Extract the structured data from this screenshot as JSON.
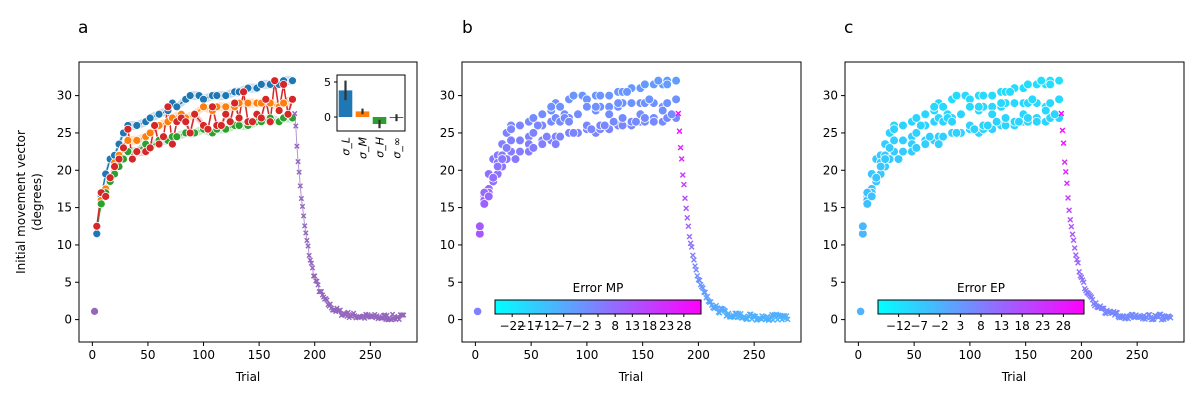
{
  "figure": {
    "colors": {
      "blue": "#1f77b4",
      "orange": "#ff7f0e",
      "green": "#2ca02c",
      "red": "#d62728",
      "purple": "#9467bd",
      "cool_start": "#00ffff",
      "cool_end": "#ff00ff"
    }
  },
  "chart_data": [
    {
      "panel_label": "a",
      "type": "line",
      "xlabel": "Trial",
      "ylabel_lines": [
        "Initial movement vector",
        "(degrees)"
      ],
      "xlim": [
        -12,
        292
      ],
      "ylim": [
        -3,
        34.5
      ],
      "xticks": [
        0,
        50,
        100,
        150,
        200,
        250
      ],
      "yticks": [
        0,
        5,
        10,
        15,
        20,
        25,
        30
      ],
      "baseline": {
        "x": 2,
        "y": 1.1,
        "color": "purple"
      },
      "series": [
        {
          "color": "blue",
          "marker": "o",
          "points": [
            [
              4,
              11.5
            ],
            [
              8,
              16.5
            ],
            [
              12,
              19.5
            ],
            [
              16,
              21.5
            ],
            [
              20,
              22
            ],
            [
              24,
              23.5
            ],
            [
              28,
              25
            ],
            [
              32,
              26
            ],
            [
              40,
              26
            ],
            [
              48,
              26.5
            ],
            [
              52,
              27
            ],
            [
              60,
              27.5
            ],
            [
              68,
              28
            ],
            [
              72,
              29
            ],
            [
              76,
              28.5
            ],
            [
              84,
              29.5
            ],
            [
              88,
              30
            ],
            [
              96,
              30
            ],
            [
              100,
              29.5
            ],
            [
              108,
              30
            ],
            [
              112,
              30
            ],
            [
              120,
              30
            ],
            [
              128,
              30.5
            ],
            [
              132,
              30.5
            ],
            [
              140,
              31
            ],
            [
              148,
              31
            ],
            [
              152,
              31.5
            ],
            [
              160,
              31.5
            ],
            [
              168,
              31.5
            ],
            [
              172,
              32
            ],
            [
              180,
              32
            ]
          ]
        },
        {
          "color": "orange",
          "marker": "o",
          "points": [
            [
              4,
              12.5
            ],
            [
              8,
              16
            ],
            [
              12,
              17.5
            ],
            [
              16,
              19
            ],
            [
              20,
              21
            ],
            [
              24,
              22
            ],
            [
              28,
              23
            ],
            [
              32,
              24
            ],
            [
              40,
              24
            ],
            [
              48,
              24.5
            ],
            [
              52,
              25
            ],
            [
              60,
              26
            ],
            [
              68,
              26.5
            ],
            [
              72,
              27
            ],
            [
              80,
              27.5
            ],
            [
              84,
              27
            ],
            [
              92,
              27.5
            ],
            [
              100,
              28.5
            ],
            [
              108,
              28
            ],
            [
              112,
              28.5
            ],
            [
              120,
              28.5
            ],
            [
              128,
              28.5
            ],
            [
              132,
              29
            ],
            [
              140,
              29
            ],
            [
              148,
              29
            ],
            [
              152,
              29
            ],
            [
              160,
              29
            ],
            [
              168,
              28.5
            ],
            [
              172,
              29
            ],
            [
              180,
              29.5
            ]
          ]
        },
        {
          "color": "green",
          "marker": "o",
          "points": [
            [
              4,
              12.5
            ],
            [
              8,
              15.5
            ],
            [
              12,
              17
            ],
            [
              16,
              18.5
            ],
            [
              20,
              19.5
            ],
            [
              24,
              20.5
            ],
            [
              28,
              21.5
            ],
            [
              32,
              22.5
            ],
            [
              40,
              22.5
            ],
            [
              48,
              23.5
            ],
            [
              52,
              23
            ],
            [
              60,
              24
            ],
            [
              68,
              24
            ],
            [
              72,
              24.5
            ],
            [
              76,
              24.5
            ],
            [
              84,
              25
            ],
            [
              92,
              25
            ],
            [
              100,
              25.5
            ],
            [
              108,
              25
            ],
            [
              112,
              25.5
            ],
            [
              120,
              25.5
            ],
            [
              128,
              26
            ],
            [
              132,
              26
            ],
            [
              140,
              26
            ],
            [
              148,
              26.5
            ],
            [
              152,
              26.5
            ],
            [
              160,
              27
            ],
            [
              168,
              26.5
            ],
            [
              172,
              27
            ],
            [
              180,
              27
            ]
          ]
        },
        {
          "color": "red",
          "marker": "o",
          "points": [
            [
              4,
              12.5
            ],
            [
              8,
              17
            ],
            [
              12,
              16.5
            ],
            [
              16,
              19
            ],
            [
              20,
              20.5
            ],
            [
              24,
              21.5
            ],
            [
              28,
              23
            ],
            [
              32,
              25.5
            ],
            [
              36,
              21.5
            ],
            [
              40,
              22.5
            ],
            [
              48,
              22.5
            ],
            [
              52,
              23
            ],
            [
              56,
              26
            ],
            [
              60,
              23.5
            ],
            [
              64,
              24.5
            ],
            [
              68,
              28.5
            ],
            [
              72,
              23.5
            ],
            [
              76,
              26.5
            ],
            [
              80,
              27
            ],
            [
              84,
              26.5
            ],
            [
              88,
              25
            ],
            [
              92,
              27.5
            ],
            [
              100,
              26
            ],
            [
              104,
              25.5
            ],
            [
              108,
              28.5
            ],
            [
              112,
              26
            ],
            [
              116,
              26
            ],
            [
              120,
              27.5
            ],
            [
              124,
              26.5
            ],
            [
              128,
              29
            ],
            [
              132,
              27
            ],
            [
              136,
              30.5
            ],
            [
              140,
              26.5
            ],
            [
              144,
              26.5
            ],
            [
              148,
              27.5
            ],
            [
              152,
              27
            ],
            [
              156,
              29.5
            ],
            [
              160,
              26.5
            ],
            [
              164,
              32
            ],
            [
              168,
              28
            ],
            [
              172,
              31.5
            ],
            [
              176,
              27.5
            ],
            [
              180,
              29.5
            ]
          ]
        }
      ],
      "washout": {
        "color": "purple",
        "marker": "x",
        "x_start": 182,
        "x_end": 280,
        "y_start": 28,
        "y_end": 0.3,
        "decay_trials": 11
      },
      "inset": {
        "type": "bar",
        "categories": [
          "σ_L",
          "σ_M",
          "σ_H",
          "σ_∞"
        ],
        "values": [
          3.8,
          0.8,
          -1.0,
          -0.1
        ],
        "errors": [
          1.4,
          0.4,
          0.6,
          0.5
        ],
        "colors": [
          "blue",
          "orange",
          "green",
          "red"
        ],
        "ylim": [
          -2,
          6
        ],
        "yticks": [
          0,
          5
        ]
      }
    },
    {
      "panel_label": "b",
      "type": "scatter",
      "xlabel": "Trial",
      "xlim": [
        -12,
        292
      ],
      "ylim": [
        -3,
        34.5
      ],
      "xticks": [
        0,
        50,
        100,
        150,
        200,
        250
      ],
      "yticks": [
        0,
        5,
        10,
        15,
        20,
        25,
        30
      ],
      "colorbar": {
        "label": "Error MP",
        "colormap": "cool",
        "range": [
          -27,
          33
        ],
        "ticks": [
          -22,
          -17,
          -12,
          -7,
          -2,
          3,
          8,
          13,
          18,
          23,
          28
        ]
      }
    },
    {
      "panel_label": "c",
      "type": "scatter",
      "xlabel": "Trial",
      "xlim": [
        -12,
        292
      ],
      "ylim": [
        -3,
        34.5
      ],
      "xticks": [
        0,
        50,
        100,
        150,
        200,
        250
      ],
      "yticks": [
        0,
        5,
        10,
        15,
        20,
        25,
        30
      ],
      "colorbar": {
        "label": "Error EP",
        "colormap": "cool",
        "range": [
          -17,
          33
        ],
        "ticks": [
          -12,
          -7,
          -2,
          3,
          8,
          13,
          18,
          23,
          28
        ]
      }
    }
  ]
}
